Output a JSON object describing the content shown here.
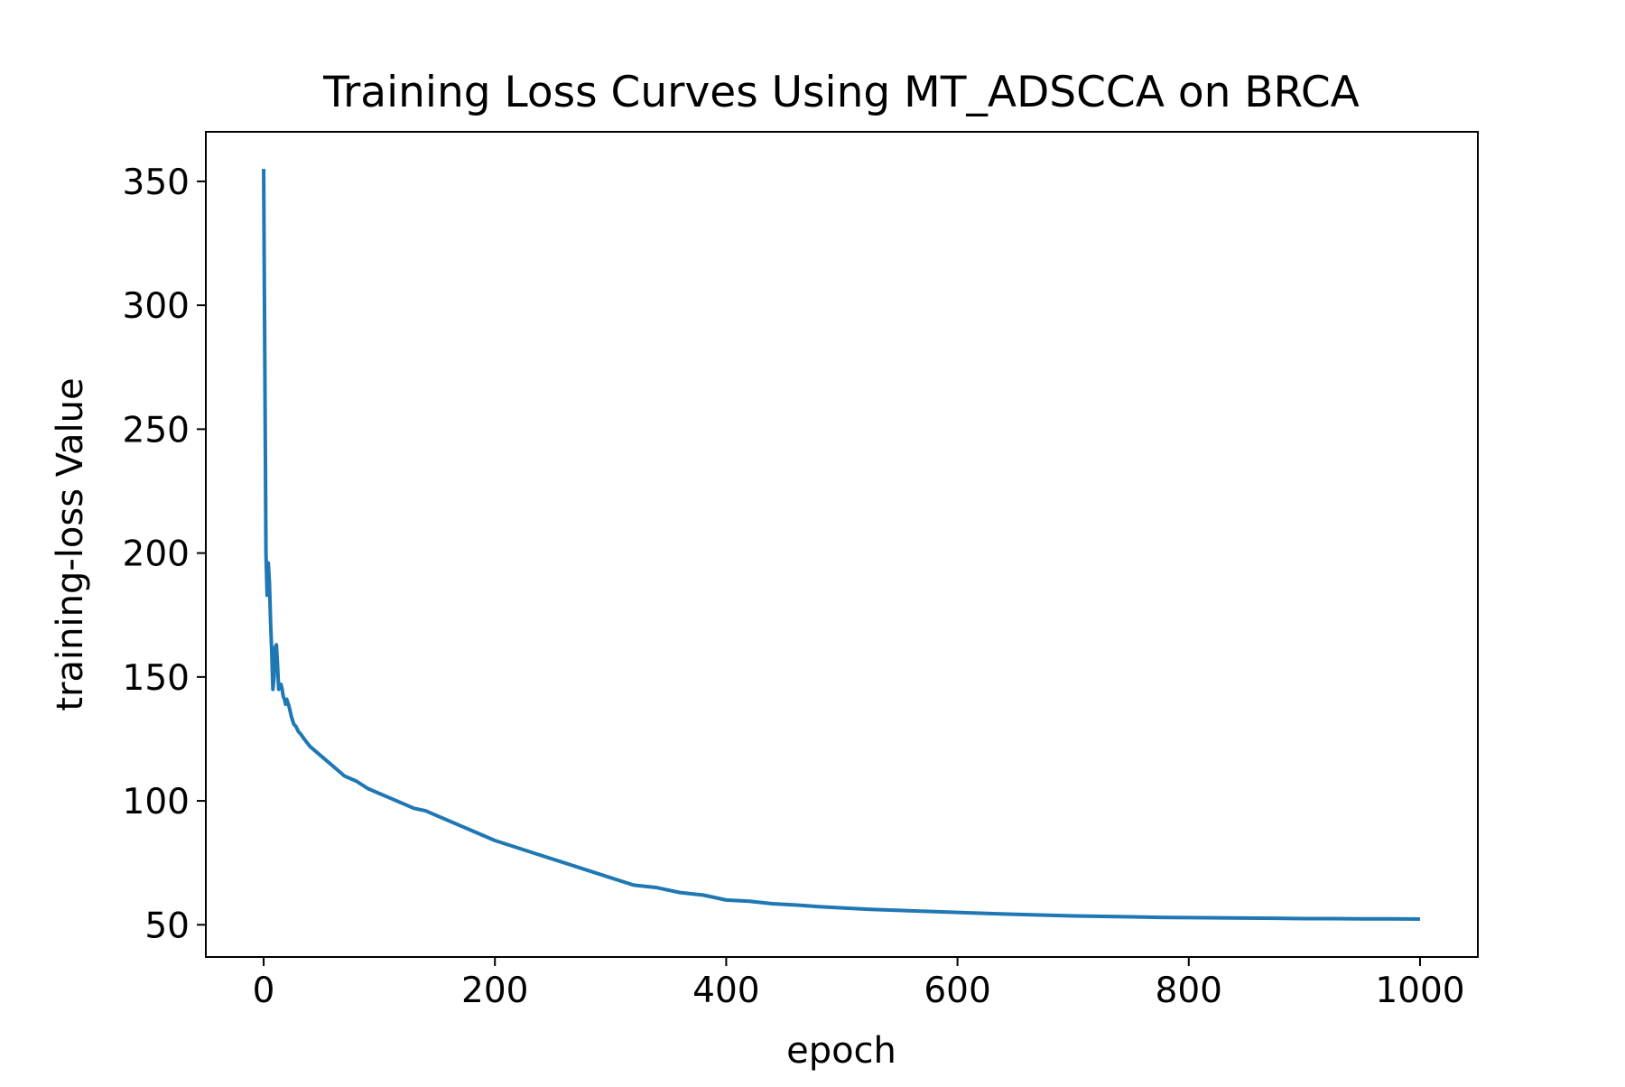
{
  "chart_data": {
    "type": "line",
    "title": "Training Loss Curves Using MT_ADSCCA on BRCA",
    "xlabel": "epoch",
    "ylabel": "training-loss Value",
    "xlim": [
      -50,
      1050
    ],
    "ylim": [
      37,
      370
    ],
    "xticks": [
      0,
      200,
      400,
      600,
      800,
      1000
    ],
    "xtick_labels": [
      "0",
      "200",
      "400",
      "600",
      "800",
      "1000"
    ],
    "yticks": [
      50,
      100,
      150,
      200,
      250,
      300,
      350
    ],
    "ytick_labels": [
      "50",
      "100",
      "150",
      "200",
      "250",
      "300",
      "350"
    ],
    "grid": false,
    "series": [
      {
        "name": "training-loss",
        "color": "#1f77b4",
        "x": [
          0,
          2,
          3,
          4,
          5,
          6,
          7,
          8,
          9,
          10,
          11,
          12,
          13,
          14,
          15,
          16,
          17,
          18,
          19,
          20,
          22,
          24,
          26,
          28,
          30,
          32,
          35,
          40,
          45,
          50,
          55,
          60,
          65,
          70,
          75,
          80,
          90,
          100,
          110,
          120,
          130,
          140,
          150,
          160,
          170,
          180,
          190,
          200,
          220,
          240,
          260,
          280,
          300,
          320,
          340,
          360,
          380,
          400,
          420,
          440,
          460,
          480,
          500,
          525,
          550,
          575,
          600,
          625,
          650,
          675,
          700,
          725,
          750,
          775,
          800,
          825,
          850,
          875,
          900,
          925,
          950,
          975,
          1000
        ],
        "y": [
          355,
          200,
          183,
          196,
          188,
          172,
          160,
          145,
          150,
          162,
          163,
          155,
          145,
          146,
          147,
          145,
          142,
          141,
          139,
          141,
          138,
          134,
          131,
          130,
          128,
          127,
          125,
          122,
          120,
          118,
          116,
          114,
          112,
          110,
          109,
          108,
          105,
          103,
          101,
          99,
          97,
          96,
          94,
          92,
          90,
          88,
          86,
          84,
          81,
          78,
          75,
          72,
          69,
          66,
          65,
          63,
          62,
          60,
          59.5,
          58.5,
          58,
          57.3,
          56.8,
          56.2,
          55.8,
          55.4,
          55,
          54.6,
          54.2,
          53.9,
          53.6,
          53.4,
          53.2,
          53.0,
          52.9,
          52.8,
          52.7,
          52.6,
          52.5,
          52.5,
          52.4,
          52.4,
          52.3
        ]
      }
    ]
  }
}
